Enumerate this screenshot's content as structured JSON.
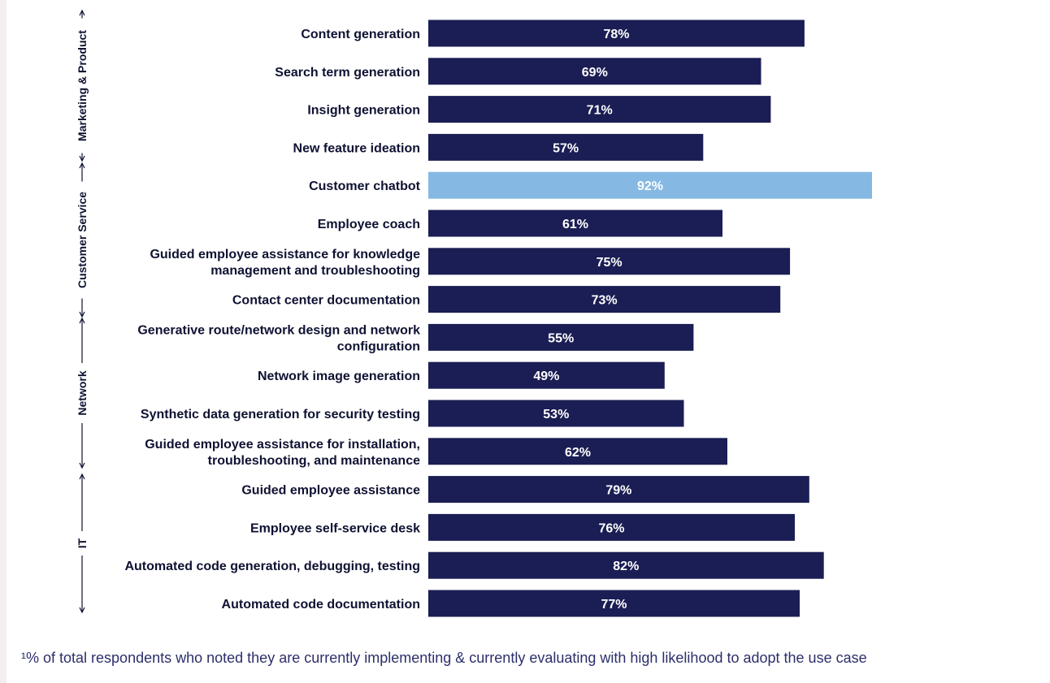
{
  "chart_data": {
    "type": "bar",
    "orientation": "horizontal",
    "title": "",
    "xlabel": "",
    "ylabel": "",
    "xlim": [
      0,
      100
    ],
    "grid": false,
    "legend": "none",
    "colors": {
      "default": "#1b1e54",
      "highlight": "#85b9e3",
      "label": "#0f1232"
    },
    "categories": [
      "Content generation",
      "Search term generation",
      "Insight generation",
      "New feature ideation",
      "Customer chatbot",
      "Employee coach",
      "Guided employee assistance for knowledge management and troubleshooting",
      "Contact center documentation",
      "Generative route/network design and network configuration",
      "Network image generation",
      "Synthetic data generation for security testing",
      "Guided employee assistance for installation, troubleshooting, and maintenance",
      "Guided employee assistance",
      "Employee self-service desk",
      "Automated code generation, debugging, testing",
      "Automated code documentation"
    ],
    "category_lines": [
      [
        "Content generation"
      ],
      [
        "Search term generation"
      ],
      [
        "Insight generation"
      ],
      [
        "New feature ideation"
      ],
      [
        "Customer chatbot"
      ],
      [
        "Employee coach"
      ],
      [
        "Guided employee assistance for knowledge",
        "management and troubleshooting"
      ],
      [
        "Contact center documentation"
      ],
      [
        "Generative route/network design and network",
        "configuration"
      ],
      [
        "Network image generation"
      ],
      [
        "Synthetic data generation for security testing"
      ],
      [
        "Guided employee assistance for installation,",
        "troubleshooting, and maintenance"
      ],
      [
        "Guided employee assistance"
      ],
      [
        "Employee self-service desk"
      ],
      [
        "Automated code generation, debugging, testing"
      ],
      [
        "Automated code documentation"
      ]
    ],
    "values": [
      78,
      69,
      71,
      57,
      92,
      61,
      75,
      73,
      55,
      49,
      53,
      62,
      79,
      76,
      82,
      77
    ],
    "value_labels": [
      "78%",
      "69%",
      "71%",
      "57%",
      "92%",
      "61%",
      "75%",
      "73%",
      "55%",
      "49%",
      "53%",
      "62%",
      "79%",
      "76%",
      "82%",
      "77%"
    ],
    "highlighted": [
      "Customer chatbot"
    ],
    "groups": [
      {
        "name": "Marketing & Product",
        "categories": [
          "Content generation",
          "Search term generation",
          "Insight generation",
          "New feature ideation"
        ]
      },
      {
        "name": "Customer Service",
        "categories": [
          "Customer chatbot",
          "Employee coach",
          "Guided employee assistance for knowledge management and troubleshooting",
          "Contact center documentation"
        ]
      },
      {
        "name": "Network",
        "categories": [
          "Generative route/network design and network configuration",
          "Network image generation",
          "Synthetic data generation for security testing",
          "Guided employee assistance for installation, troubleshooting, and maintenance"
        ]
      },
      {
        "name": "IT",
        "categories": [
          "Guided employee assistance",
          "Employee self-service desk",
          "Automated code generation, debugging, testing",
          "Automated code documentation"
        ]
      }
    ]
  },
  "footnote": "¹% of total respondents who noted they are currently implementing & currently evaluating with high likelihood to adopt the use case"
}
